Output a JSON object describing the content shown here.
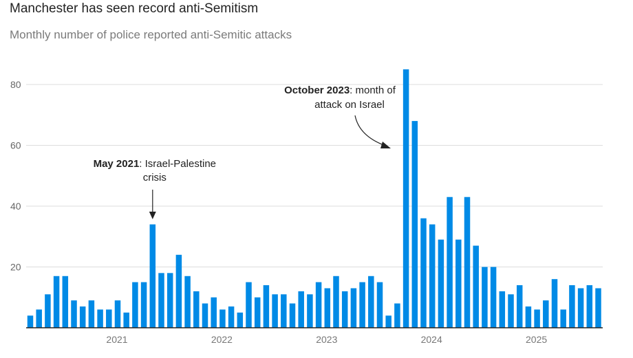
{
  "chart_data": {
    "type": "bar",
    "title": "Manchester has seen record anti-Semitism",
    "subtitle": "Monthly number of police reported anti-Semitic attacks",
    "start_month": "2020-03",
    "values": [
      4,
      6,
      11,
      17,
      17,
      9,
      7,
      9,
      6,
      6,
      9,
      5,
      15,
      15,
      34,
      18,
      18,
      24,
      17,
      12,
      8,
      10,
      6,
      7,
      5,
      15,
      10,
      14,
      11,
      11,
      8,
      12,
      11,
      15,
      13,
      17,
      12,
      13,
      15,
      17,
      15,
      4,
      8,
      85,
      68,
      36,
      34,
      29,
      43,
      29,
      43,
      27,
      20,
      20,
      12,
      11,
      14,
      7,
      6,
      9,
      16,
      6,
      14,
      13,
      14,
      13
    ],
    "ylim": [
      0,
      85
    ],
    "yticks": [
      "20",
      "40",
      "60",
      "80"
    ],
    "ytick_values": [
      20,
      40,
      60,
      80
    ],
    "xticks": [
      {
        "label": "2021",
        "index": 10
      },
      {
        "label": "2022",
        "index": 22
      },
      {
        "label": "2023",
        "index": 34
      },
      {
        "label": "2024",
        "index": 46
      },
      {
        "label": "2025",
        "index": 58
      }
    ],
    "bar_color": "#008ae6",
    "annotations": [
      {
        "index": 14,
        "bold": "May 2021",
        "text": ": Israel-Palestine",
        "line2": "crisis"
      },
      {
        "index": 43,
        "bold": "October 2023",
        "text": ": month of",
        "line2": "attack on Israel"
      }
    ]
  }
}
